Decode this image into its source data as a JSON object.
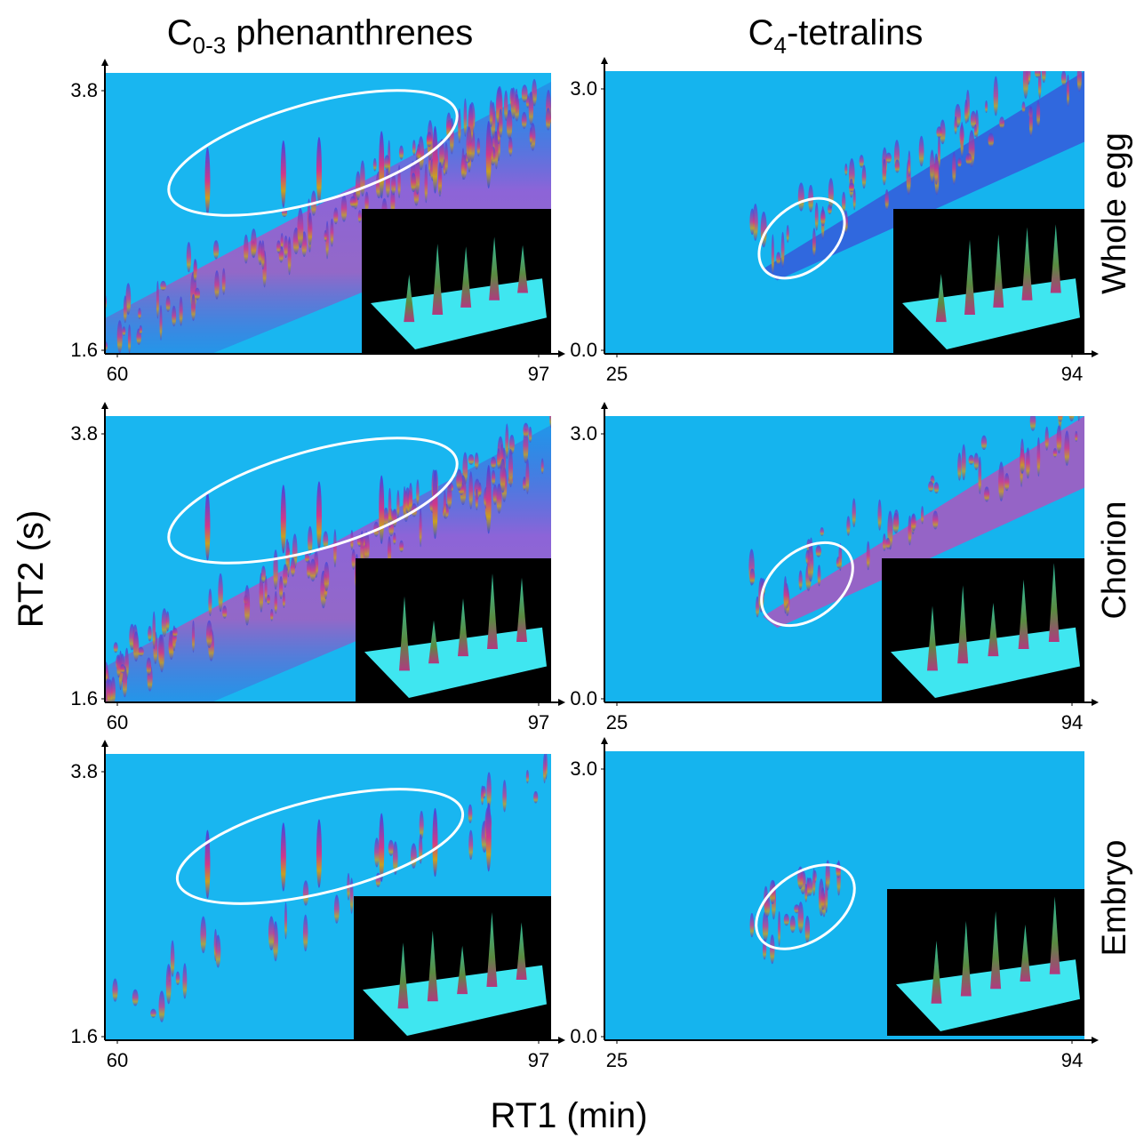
{
  "columns": [
    {
      "title": {
        "main": "C",
        "sub": "0-3",
        "rest": " phenanthrenes"
      }
    },
    {
      "title": {
        "main": "C",
        "sub": "4",
        "rest": "-tetralins"
      }
    }
  ],
  "rows": [
    "Whole egg",
    "Chorion",
    "Embryo"
  ],
  "y_label": "RT2 (s)",
  "x_label": "RT1 (min)",
  "panels": [
    {
      "xticks": [
        60,
        97
      ],
      "yticks": [
        1.6,
        3.8
      ]
    },
    {
      "xticks": [
        25,
        94
      ],
      "yticks": [
        {
          "value": 0,
          "label": "0.0"
        },
        {
          "value": 3,
          "label": "3.0"
        }
      ]
    },
    {
      "xticks": [
        60,
        97
      ],
      "yticks": [
        1.6,
        3.8
      ]
    },
    {
      "xticks": [
        25,
        94
      ],
      "yticks": [
        {
          "value": 0,
          "label": "0.0"
        },
        {
          "value": 3,
          "label": "3.0"
        }
      ]
    },
    {
      "xticks": [
        60,
        97
      ],
      "yticks": [
        1.6,
        3.8
      ]
    },
    {
      "xticks": [
        25,
        94
      ],
      "yticks": [
        {
          "value": 0,
          "label": "0.0"
        },
        {
          "value": 3,
          "label": "3.0"
        }
      ]
    }
  ]
}
